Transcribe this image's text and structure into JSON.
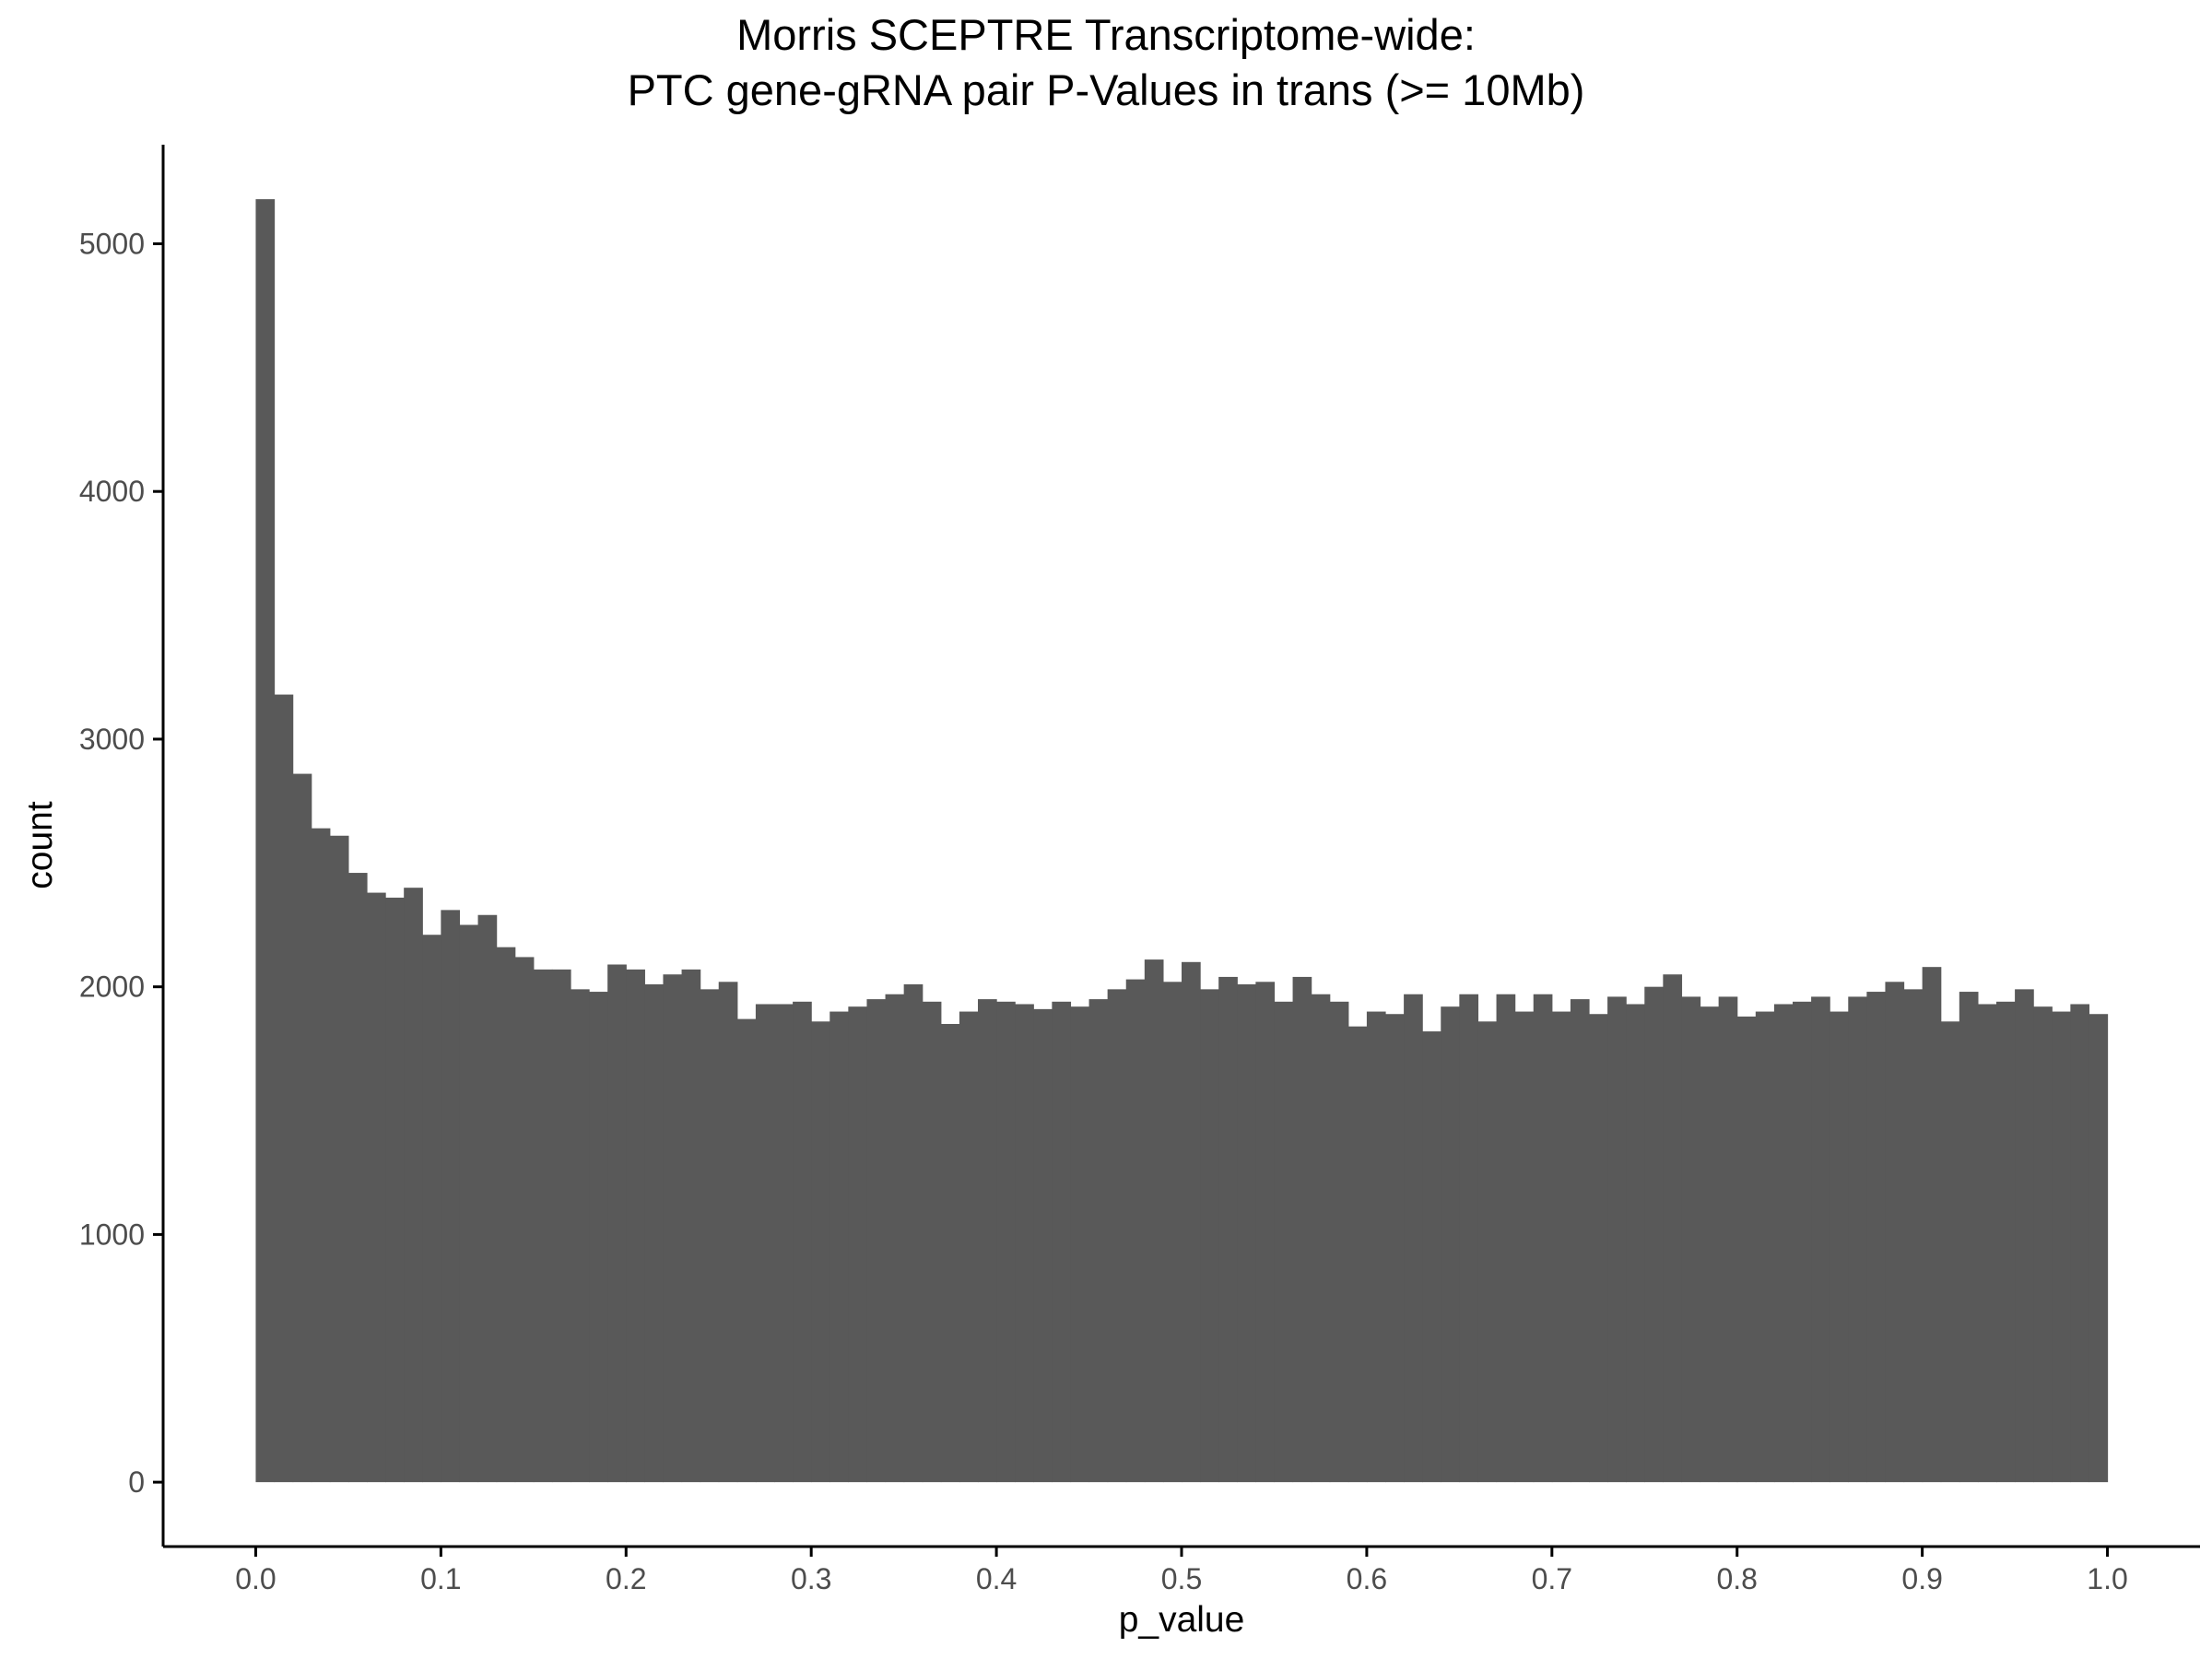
{
  "chart_data": {
    "type": "bar",
    "subtype": "histogram",
    "title": "Morris SCEPTRE Transcriptome-wide:",
    "subtitle": "PTC gene-gRNA pair P-Values in trans (>= 10Mb)",
    "xlabel": "p_value",
    "ylabel": "count",
    "bar_color": "#595959",
    "axis_color": "#000000",
    "tick_label_color": "#4d4d4d",
    "grid": false,
    "xlim": [
      -0.05,
      1.05
    ],
    "ylim": [
      -260,
      5400
    ],
    "bin_width": 0.01,
    "x_ticks": [
      "0.0",
      "0.1",
      "0.2",
      "0.3",
      "0.4",
      "0.5",
      "0.6",
      "0.7",
      "0.8",
      "0.9",
      "1.0"
    ],
    "x_tick_values": [
      0,
      0.1,
      0.2,
      0.3,
      0.4,
      0.5,
      0.6,
      0.7,
      0.8,
      0.9,
      1.0
    ],
    "y_ticks": [
      "0",
      "1000",
      "2000",
      "3000",
      "4000",
      "5000"
    ],
    "y_tick_values": [
      0,
      1000,
      2000,
      3000,
      4000,
      5000
    ],
    "bin_start": [
      0.0,
      0.01,
      0.02,
      0.03,
      0.04,
      0.05,
      0.06,
      0.07,
      0.08,
      0.09,
      0.1,
      0.11,
      0.12,
      0.13,
      0.14,
      0.15,
      0.16,
      0.17,
      0.18,
      0.19,
      0.2,
      0.21,
      0.22,
      0.23,
      0.24,
      0.25,
      0.26,
      0.27,
      0.28,
      0.29,
      0.3,
      0.31,
      0.32,
      0.33,
      0.34,
      0.35,
      0.36,
      0.37,
      0.38,
      0.39,
      0.4,
      0.41,
      0.42,
      0.43,
      0.44,
      0.45,
      0.46,
      0.47,
      0.48,
      0.49,
      0.5,
      0.51,
      0.52,
      0.53,
      0.54,
      0.55,
      0.56,
      0.57,
      0.58,
      0.59,
      0.6,
      0.61,
      0.62,
      0.63,
      0.64,
      0.65,
      0.66,
      0.67,
      0.68,
      0.69,
      0.7,
      0.71,
      0.72,
      0.73,
      0.74,
      0.75,
      0.76,
      0.77,
      0.78,
      0.79,
      0.8,
      0.81,
      0.82,
      0.83,
      0.84,
      0.85,
      0.86,
      0.87,
      0.88,
      0.89,
      0.9,
      0.91,
      0.92,
      0.93,
      0.94,
      0.95,
      0.96,
      0.97,
      0.98,
      0.99
    ],
    "values": [
      5180,
      3180,
      2860,
      2640,
      2610,
      2460,
      2380,
      2360,
      2400,
      2210,
      2310,
      2250,
      2290,
      2160,
      2120,
      2070,
      2070,
      1990,
      1980,
      2090,
      2070,
      2010,
      2050,
      2070,
      1990,
      2020,
      1870,
      1930,
      1930,
      1940,
      1860,
      1900,
      1920,
      1950,
      1970,
      2010,
      1940,
      1850,
      1900,
      1950,
      1940,
      1930,
      1910,
      1940,
      1920,
      1950,
      1990,
      2030,
      2110,
      2020,
      2100,
      1990,
      2040,
      2010,
      2020,
      1940,
      2040,
      1970,
      1940,
      1840,
      1900,
      1890,
      1970,
      1820,
      1920,
      1970,
      1860,
      1970,
      1900,
      1970,
      1900,
      1950,
      1890,
      1960,
      1930,
      2000,
      2050,
      1960,
      1920,
      1960,
      1880,
      1900,
      1930,
      1940,
      1960,
      1900,
      1960,
      1980,
      2020,
      1990,
      2080,
      1860,
      1980,
      1930,
      1940,
      1990,
      1920,
      1900,
      1930,
      1890
    ]
  }
}
